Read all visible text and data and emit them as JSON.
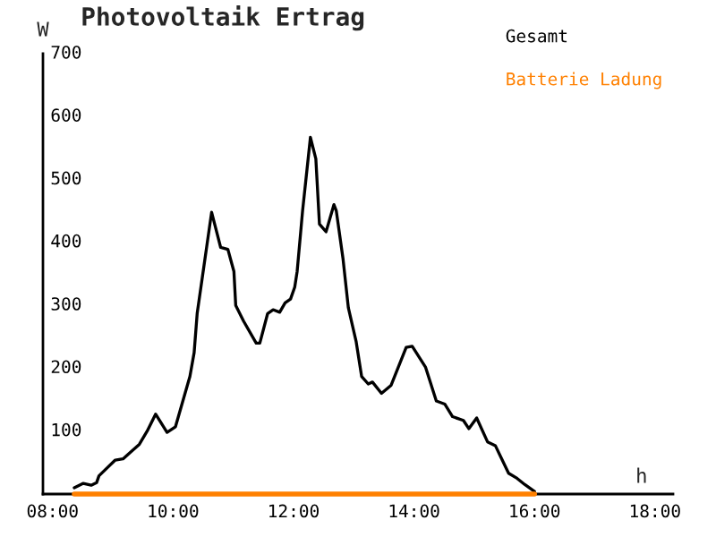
{
  "chart_data": {
    "type": "line",
    "title": "Photovoltaik Ertrag",
    "xlabel": "h",
    "ylabel": "W",
    "series": [
      {
        "name": "Gesamt",
        "color": "#000000",
        "x": [
          8.36,
          8.51,
          8.64,
          8.73,
          8.77,
          9.04,
          9.17,
          9.44,
          9.57,
          9.71,
          9.9,
          10.04,
          10.28,
          10.35,
          10.4,
          10.64,
          10.79,
          10.91,
          11.01,
          11.04,
          11.17,
          11.38,
          11.44,
          11.57,
          11.66,
          11.77,
          11.86,
          11.95,
          12.02,
          12.06,
          12.15,
          12.28,
          12.37,
          12.43,
          12.54,
          12.67,
          12.71,
          12.82,
          12.91,
          13.04,
          13.13,
          13.24,
          13.31,
          13.46,
          13.62,
          13.87,
          13.97,
          14.19,
          14.37,
          14.51,
          14.64,
          14.82,
          14.91,
          15.04,
          15.22,
          15.35,
          15.57,
          15.71,
          15.84,
          16.0
        ],
        "values": [
          10,
          17,
          14,
          18,
          29,
          54,
          56,
          79,
          100,
          127,
          98,
          107,
          187,
          225,
          287,
          448,
          392,
          389,
          354,
          300,
          275,
          240,
          240,
          287,
          293,
          289,
          304,
          310,
          329,
          354,
          450,
          567,
          533,
          429,
          417,
          460,
          450,
          375,
          296,
          242,
          187,
          175,
          178,
          160,
          173,
          233,
          235,
          202,
          148,
          143,
          123,
          117,
          104,
          121,
          83,
          77,
          33,
          25,
          15,
          4
        ]
      },
      {
        "name": "Batterie Ladung",
        "color": "#ff8000",
        "x": [
          8.36,
          16.0
        ],
        "values": [
          0,
          0
        ]
      }
    ],
    "xlim": [
      7.84,
      18.3
    ],
    "ylim": [
      0,
      700
    ],
    "xticks": [
      {
        "value": 8,
        "label": "08:00"
      },
      {
        "value": 10,
        "label": "10:00"
      },
      {
        "value": 12,
        "label": "12:00"
      },
      {
        "value": 14,
        "label": "14:00"
      },
      {
        "value": 16,
        "label": "16:00"
      },
      {
        "value": 18,
        "label": "18:00"
      }
    ],
    "yticks": [
      100,
      200,
      300,
      400,
      500,
      600,
      700
    ],
    "grid": false,
    "legend": "top right",
    "marker": "none",
    "line_style": "solid"
  }
}
